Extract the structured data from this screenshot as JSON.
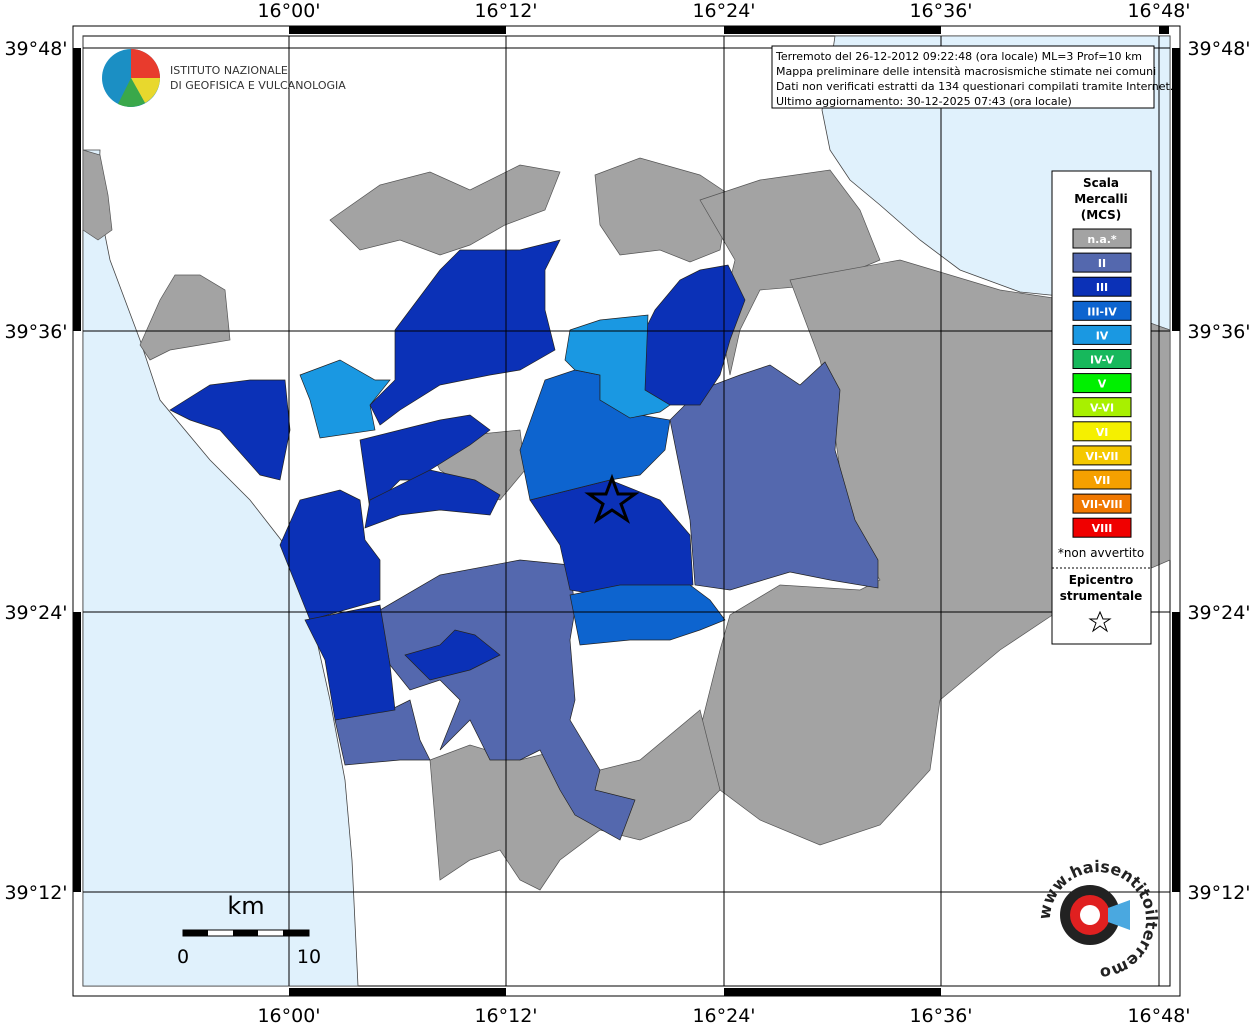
{
  "logo": {
    "line1": "ISTITUTO NAZIONALE",
    "line2": "DI GEOFISICA E VULCANOLOGIA"
  },
  "info": [
    "Terremoto del 26-12-2012 09:22:48 (ora locale) ML=3 Prof=10 km",
    "Mappa preliminare delle intensità macrosismiche stimate nei comuni",
    "Dati non verificati estratti da 134 questionari compilati tramite Internet.",
    "Ultimo aggiornamento: 30-12-2025 07:43 (ora locale)"
  ],
  "longitudes": [
    "16°00'",
    "16°12'",
    "16°24'",
    "16°36'",
    "16°48'"
  ],
  "latitudes": [
    "39°48'",
    "39°36'",
    "39°24'",
    "39°12'"
  ],
  "legend": {
    "title": [
      "Scala",
      "Mercalli",
      "(MCS)"
    ],
    "items": [
      {
        "label": "n.a.*",
        "color": "#a3a3a3"
      },
      {
        "label": "II",
        "color": "#5468ae"
      },
      {
        "label": "III",
        "color": "#0b31b7"
      },
      {
        "label": "III-IV",
        "color": "#0d64cf"
      },
      {
        "label": "IV",
        "color": "#1a98e2"
      },
      {
        "label": "IV-V",
        "color": "#17b85c"
      },
      {
        "label": "V",
        "color": "#00f000"
      },
      {
        "label": "V-VI",
        "color": "#a8f000"
      },
      {
        "label": "VI",
        "color": "#f5f000"
      },
      {
        "label": "VI-VII",
        "color": "#f5c800"
      },
      {
        "label": "VII",
        "color": "#f5a000"
      },
      {
        "label": "VII-VIII",
        "color": "#f07800"
      },
      {
        "label": "VIII",
        "color": "#f00000"
      }
    ],
    "note": "*non avvertito",
    "epicenter": [
      "Epicentro",
      "strumentale"
    ]
  },
  "scale": {
    "unit": "km",
    "min": "0",
    "max": "10"
  },
  "hst_logo": "www.haisentitoilterremoto.it"
}
